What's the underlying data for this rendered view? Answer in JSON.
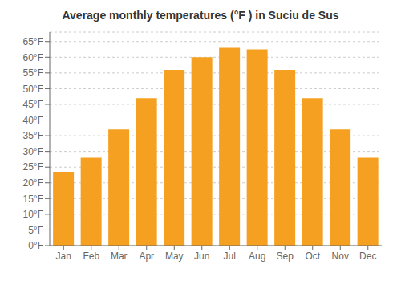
{
  "chart_data": {
    "type": "bar",
    "title": "Average monthly temperatures (°F ) in Suciu de Sus",
    "categories": [
      "Jan",
      "Feb",
      "Mar",
      "Apr",
      "May",
      "Jun",
      "Jul",
      "Aug",
      "Sep",
      "Oct",
      "Nov",
      "Dec"
    ],
    "values": [
      23.5,
      28.0,
      37.0,
      47.0,
      56.0,
      60.0,
      63.0,
      62.5,
      56.0,
      47.0,
      37.0,
      28.0
    ],
    "color": "#F5A020",
    "ylim": [
      0,
      68
    ],
    "yticks": [
      {
        "value": 0,
        "label": "0°F"
      },
      {
        "value": 5,
        "label": "5°F"
      },
      {
        "value": 10,
        "label": "10°F"
      },
      {
        "value": 15,
        "label": "15°F"
      },
      {
        "value": 20,
        "label": "20°F"
      },
      {
        "value": 25,
        "label": "25°F"
      },
      {
        "value": 30,
        "label": "30°F"
      },
      {
        "value": 35,
        "label": "35°F"
      },
      {
        "value": 40,
        "label": "40°F"
      },
      {
        "value": 45,
        "label": "45°F"
      },
      {
        "value": 50,
        "label": "50°F"
      },
      {
        "value": 55,
        "label": "55°F"
      },
      {
        "value": 60,
        "label": "60°F"
      },
      {
        "value": 65,
        "label": "65°F"
      }
    ],
    "grid": true
  }
}
